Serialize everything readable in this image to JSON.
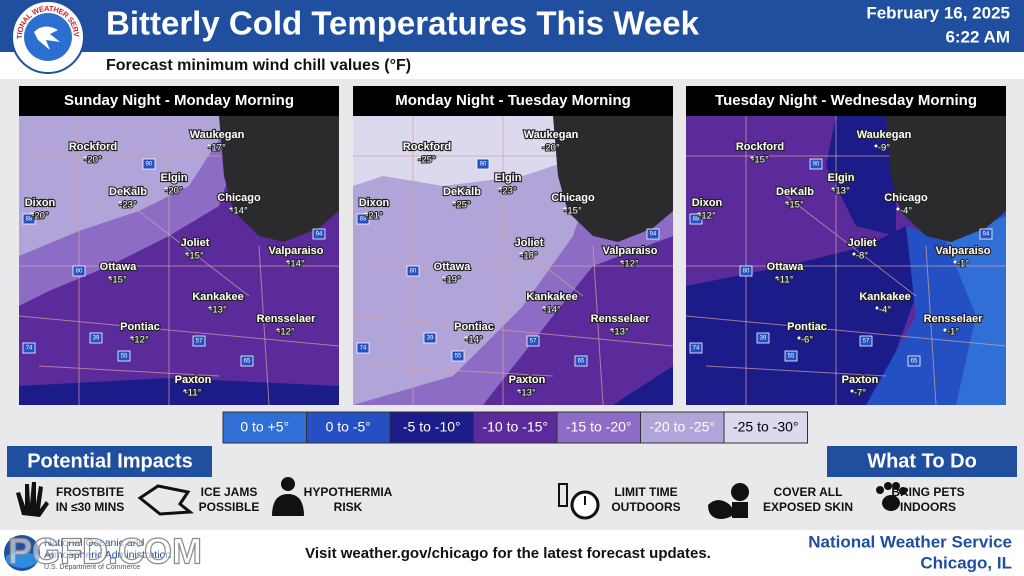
{
  "logo": {
    "text": "NATIONAL WEATHER SERVICE"
  },
  "header": {
    "title": "Bitterly Cold Temperatures This Week",
    "date": "February 16, 2025",
    "time": "6:22 AM",
    "subtitle": "Forecast minimum wind chill values (°F)"
  },
  "highways": [
    "88",
    "90",
    "94",
    "80",
    "39",
    "55",
    "57",
    "74",
    "65"
  ],
  "panels": [
    {
      "title": "Sunday Night - Monday Morning",
      "cities": [
        {
          "name": "Rockford",
          "value": "-20°"
        },
        {
          "name": "Waukegan",
          "value": "-17°"
        },
        {
          "name": "Elgin",
          "value": "-20°"
        },
        {
          "name": "DeKalb",
          "value": "-23°"
        },
        {
          "name": "Dixon",
          "value": "-20°"
        },
        {
          "name": "Chicago",
          "value": "-14°"
        },
        {
          "name": "Joliet",
          "value": "-15°"
        },
        {
          "name": "Valparaiso",
          "value": "-14°"
        },
        {
          "name": "Ottawa",
          "value": "-15°"
        },
        {
          "name": "Kankakee",
          "value": "-13°"
        },
        {
          "name": "Rensselaer",
          "value": "-12°"
        },
        {
          "name": "Pontiac",
          "value": "-12°"
        },
        {
          "name": "Paxton",
          "value": "-11°"
        }
      ]
    },
    {
      "title": "Monday Night - Tuesday Morning",
      "cities": [
        {
          "name": "Rockford",
          "value": "-25°"
        },
        {
          "name": "Waukegan",
          "value": "-20°"
        },
        {
          "name": "Elgin",
          "value": "-23°"
        },
        {
          "name": "DeKalb",
          "value": "-25°"
        },
        {
          "name": "Dixon",
          "value": "-21°"
        },
        {
          "name": "Chicago",
          "value": "-15°"
        },
        {
          "name": "Joliet",
          "value": "-18°"
        },
        {
          "name": "Valparaiso",
          "value": "-12°"
        },
        {
          "name": "Ottawa",
          "value": "-19°"
        },
        {
          "name": "Kankakee",
          "value": "-14°"
        },
        {
          "name": "Rensselaer",
          "value": "-13°"
        },
        {
          "name": "Pontiac",
          "value": "-14°"
        },
        {
          "name": "Paxton",
          "value": "-13°"
        }
      ]
    },
    {
      "title": "Tuesday Night - Wednesday Morning",
      "cities": [
        {
          "name": "Rockford",
          "value": "-15°"
        },
        {
          "name": "Waukegan",
          "value": "-9°"
        },
        {
          "name": "Elgin",
          "value": "-13°"
        },
        {
          "name": "DeKalb",
          "value": "-15°"
        },
        {
          "name": "Dixon",
          "value": "-12°"
        },
        {
          "name": "Chicago",
          "value": "-4°"
        },
        {
          "name": "Joliet",
          "value": "-8°"
        },
        {
          "name": "Valparaiso",
          "value": "-1°"
        },
        {
          "name": "Ottawa",
          "value": "-11°"
        },
        {
          "name": "Kankakee",
          "value": "-4°"
        },
        {
          "name": "Rensselaer",
          "value": "-1°"
        },
        {
          "name": "Pontiac",
          "value": "-6°"
        },
        {
          "name": "Paxton",
          "value": "-7°"
        }
      ]
    }
  ],
  "legend": [
    {
      "label": "0 to +5°",
      "color": "#2f6fd6",
      "text_color": "#ffffff"
    },
    {
      "label": "0 to -5°",
      "color": "#2450c4",
      "text_color": "#ffffff"
    },
    {
      "label": "-5 to -10°",
      "color": "#1b1b8a",
      "text_color": "#ffffff"
    },
    {
      "label": "-10 to -15°",
      "color": "#5b2b9b",
      "text_color": "#ffffff"
    },
    {
      "label": "-15 to -20°",
      "color": "#8c6cc4",
      "text_color": "#ffffff"
    },
    {
      "label": "-20 to -25°",
      "color": "#b0a4d8",
      "text_color": "#ffffff"
    },
    {
      "label": "-25 to -30°",
      "color": "#dcd8ee",
      "text_color": "#000000"
    }
  ],
  "impacts": {
    "title": "Potential Impacts",
    "items": [
      {
        "lines": [
          "FROSTBITE",
          "IN ≤30 MINS"
        ]
      },
      {
        "lines": [
          "ICE JAMS",
          "POSSIBLE"
        ]
      },
      {
        "lines": [
          "HYPOTHERMIA",
          "RISK"
        ]
      }
    ]
  },
  "actions": {
    "title": "What To Do",
    "items": [
      {
        "lines": [
          "LIMIT TIME",
          "OUTDOORS"
        ]
      },
      {
        "lines": [
          "COVER ALL",
          "EXPOSED SKIN"
        ]
      },
      {
        "lines": [
          "BRING PETS",
          "INDOORS"
        ]
      }
    ]
  },
  "footer": {
    "agency": [
      "National Oceanic and",
      "Atmospheric Administration"
    ],
    "department": "U.S. Department of Commerce",
    "watermark": "PGFD.COM",
    "message": "Visit weather.gov/chicago for the latest forecast updates.",
    "office": [
      "National Weather Service",
      "Chicago, IL"
    ]
  }
}
